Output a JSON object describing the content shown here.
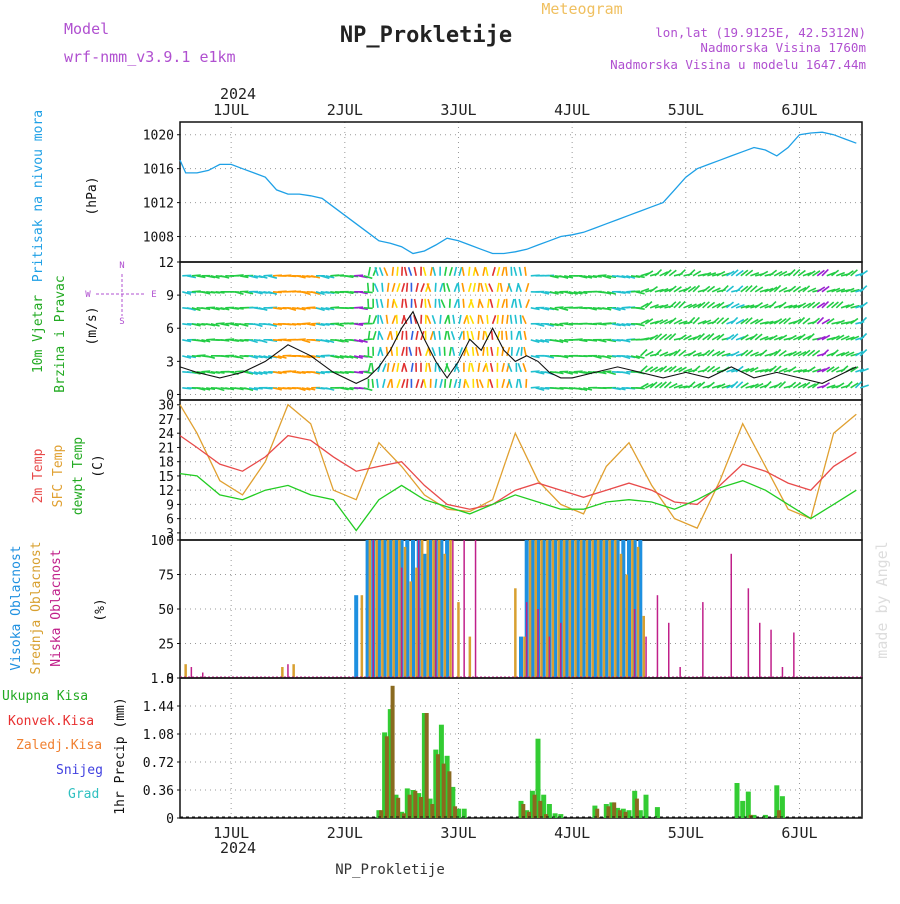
{
  "header": {
    "model_label": "Model",
    "model_name": "wrf-nmm_v3.9.1 e1km",
    "main_title": "NP_Prokletije",
    "meteogram_label": "Meteogram",
    "lonlat": "lon,lat (19.9125E, 42.5312N)",
    "altitude": "Nadmorska Visina 1760m",
    "model_altitude": "Nadmorska Visina u modelu 1647.44m",
    "footer_title": "NP_Prokletije",
    "watermark": "made by Angel"
  },
  "time_axis": {
    "year": "2024",
    "range": [
      0.55,
      6.55
    ],
    "days": [
      1,
      2,
      3,
      4,
      5,
      6
    ],
    "day_labels": [
      "1JUL",
      "2JUL",
      "3JUL",
      "4JUL",
      "5JUL",
      "6JUL"
    ]
  },
  "colors": {
    "pressure": "#1ea0e6",
    "temp2m": "#e84a4a",
    "sfc_temp": "#e0a030",
    "dewpoint": "#22cc22",
    "high_cloud": "#1e90e0",
    "mid_cloud": "#d8a030",
    "low_cloud": "#c0208a",
    "total_precip": "#33cc33",
    "conv_precip": "#e83030",
    "frozen_precip": "#f08030",
    "snow": "#4040e0",
    "hail": "#30c0c0",
    "axis_labels_purple": "#b050d0"
  },
  "chart_data": [
    {
      "type": "line",
      "panel": "pressure",
      "ylabel_line1": "Pritisak na nivou mora",
      "ylabel_units": "(hPa)",
      "ylim": [
        1005,
        1021.5
      ],
      "yticks": [
        1008,
        1012,
        1016,
        1020
      ],
      "grid": true,
      "series": [
        {
          "x": [
            0.55,
            0.6,
            0.7,
            0.8,
            0.9,
            1.0,
            1.1,
            1.2,
            1.3,
            1.4,
            1.5,
            1.6,
            1.7,
            1.8,
            1.9,
            2.0,
            2.1,
            2.2,
            2.3,
            2.4,
            2.5,
            2.6,
            2.7,
            2.8,
            2.9,
            3.0,
            3.1,
            3.2,
            3.3,
            3.4,
            3.5,
            3.6,
            3.7,
            3.8,
            3.9,
            4.0,
            4.1,
            4.2,
            4.3,
            4.4,
            4.5,
            4.6,
            4.7,
            4.8,
            4.9,
            5.0,
            5.1,
            5.2,
            5.3,
            5.4,
            5.5,
            5.6,
            5.7,
            5.8,
            5.9,
            6.0,
            6.1,
            6.2,
            6.3,
            6.4,
            6.5
          ],
          "y": [
            1017.0,
            1015.5,
            1015.5,
            1015.8,
            1016.5,
            1016.5,
            1016.0,
            1015.5,
            1015.0,
            1013.5,
            1013.0,
            1013.0,
            1012.8,
            1012.5,
            1011.5,
            1010.5,
            1009.5,
            1008.5,
            1007.5,
            1007.2,
            1006.8,
            1006.0,
            1006.3,
            1007.0,
            1007.8,
            1007.5,
            1007.0,
            1006.5,
            1006.0,
            1006.0,
            1006.2,
            1006.5,
            1007.0,
            1007.5,
            1008.0,
            1008.2,
            1008.5,
            1009.0,
            1009.5,
            1010.0,
            1010.5,
            1011.0,
            1011.5,
            1012.0,
            1013.5,
            1015.0,
            1016.0,
            1016.5,
            1017.0,
            1017.5,
            1018.0,
            1018.5,
            1018.2,
            1017.5,
            1018.5,
            1020.0,
            1020.2,
            1020.3,
            1020.0,
            1019.5,
            1019.0
          ]
        }
      ]
    },
    {
      "type": "line",
      "panel": "wind",
      "ylabel_line1": "10m Vjetar",
      "ylabel_line2": "Brzina i Pravac",
      "ylabel_units": "(m/s)",
      "compass_n": "N",
      "compass_e": "E",
      "compass_w": "W",
      "compass_s": "S",
      "ylim": [
        -0.5,
        12
      ],
      "yticks": [
        0,
        3,
        6,
        9,
        12
      ],
      "grid": true,
      "series": [
        {
          "name": "speed",
          "x": [
            0.55,
            0.7,
            0.9,
            1.1,
            1.3,
            1.5,
            1.7,
            1.9,
            2.1,
            2.2,
            2.3,
            2.4,
            2.5,
            2.6,
            2.7,
            2.8,
            2.9,
            3.0,
            3.1,
            3.2,
            3.3,
            3.4,
            3.5,
            3.6,
            3.7,
            3.8,
            3.9,
            4.0,
            4.2,
            4.4,
            4.6,
            4.8,
            5.0,
            5.2,
            5.4,
            5.6,
            5.8,
            6.0,
            6.2,
            6.4,
            6.5
          ],
          "y": [
            2.5,
            2.0,
            1.5,
            2.0,
            3.0,
            4.5,
            3.5,
            2.0,
            1.0,
            1.5,
            2.5,
            4.0,
            6.0,
            7.5,
            5.0,
            3.0,
            1.5,
            3.0,
            5.0,
            4.0,
            6.0,
            4.0,
            3.0,
            3.5,
            3.0,
            2.0,
            1.5,
            1.5,
            2.0,
            2.5,
            2.0,
            1.5,
            2.0,
            1.5,
            2.5,
            1.5,
            2.0,
            1.5,
            1.0,
            2.0,
            2.5
          ]
        }
      ]
    },
    {
      "type": "line",
      "panel": "temperature",
      "ylabel_line1": "2m Temp",
      "ylabel_line2": "SFC Temp",
      "ylabel_line3": "dewpt Temp",
      "ylabel_units": "(C)",
      "ylim": [
        1.5,
        31
      ],
      "yticks": [
        3,
        6,
        9,
        12,
        15,
        18,
        21,
        24,
        27,
        30
      ],
      "grid": true,
      "series": [
        {
          "name": "2m Temp",
          "x": [
            0.55,
            0.7,
            0.9,
            1.1,
            1.3,
            1.5,
            1.7,
            1.9,
            2.1,
            2.3,
            2.5,
            2.7,
            2.9,
            3.1,
            3.3,
            3.5,
            3.7,
            3.9,
            4.1,
            4.3,
            4.5,
            4.7,
            4.9,
            5.1,
            5.3,
            5.5,
            5.7,
            5.9,
            6.1,
            6.3,
            6.5
          ],
          "y": [
            23.5,
            21.0,
            17.5,
            16.0,
            19.0,
            23.5,
            22.5,
            19.0,
            16.0,
            17.0,
            18.0,
            13.0,
            9.0,
            8.0,
            9.0,
            12.0,
            13.5,
            12.0,
            10.5,
            12.0,
            13.5,
            12.0,
            9.5,
            9.0,
            13.0,
            17.5,
            16.0,
            13.5,
            12.0,
            17.0,
            20.0
          ]
        },
        {
          "name": "SFC Temp",
          "x": [
            0.55,
            0.7,
            0.9,
            1.1,
            1.3,
            1.5,
            1.7,
            1.9,
            2.1,
            2.3,
            2.5,
            2.7,
            2.9,
            3.1,
            3.3,
            3.5,
            3.7,
            3.9,
            4.1,
            4.3,
            4.5,
            4.7,
            4.9,
            5.1,
            5.3,
            5.5,
            5.7,
            5.9,
            6.1,
            6.3,
            6.5
          ],
          "y": [
            30.0,
            24.0,
            14.0,
            11.0,
            18.0,
            30.0,
            26.0,
            12.0,
            10.0,
            22.0,
            17.0,
            11.0,
            8.0,
            7.5,
            10.0,
            24.0,
            14.0,
            9.0,
            7.0,
            17.0,
            22.0,
            13.0,
            6.0,
            4.0,
            14.0,
            26.0,
            17.0,
            8.0,
            6.0,
            24.0,
            28.0
          ]
        },
        {
          "name": "dewpt Temp",
          "x": [
            0.55,
            0.7,
            0.9,
            1.1,
            1.3,
            1.5,
            1.7,
            1.9,
            2.1,
            2.3,
            2.5,
            2.7,
            2.9,
            3.1,
            3.3,
            3.5,
            3.7,
            3.9,
            4.1,
            4.3,
            4.5,
            4.7,
            4.9,
            5.1,
            5.3,
            5.5,
            5.7,
            5.9,
            6.1,
            6.3,
            6.5
          ],
          "y": [
            15.5,
            15.0,
            11.0,
            10.0,
            12.0,
            13.0,
            11.0,
            10.0,
            3.5,
            10.0,
            13.0,
            10.0,
            8.5,
            7.0,
            9.0,
            11.0,
            9.5,
            8.0,
            8.0,
            9.5,
            10.0,
            9.5,
            8.0,
            10.0,
            12.5,
            14.0,
            12.0,
            9.0,
            6.0,
            9.0,
            12.0
          ]
        }
      ]
    },
    {
      "type": "bar",
      "panel": "clouds",
      "ylabel_line1": "Visoka Oblacnost",
      "ylabel_line2": "Srednja Oblacnost",
      "ylabel_line3": "Niska Oblacnost",
      "ylabel_units": "(%)",
      "ylim": [
        0,
        100
      ],
      "yticks": [
        0,
        25,
        50,
        75,
        100
      ],
      "grid": true,
      "series": [
        {
          "name": "Visoka Oblacnost",
          "x": [
            2.1,
            2.2,
            2.25,
            2.3,
            2.35,
            2.4,
            2.45,
            2.5,
            2.55,
            2.6,
            2.65,
            2.7,
            2.75,
            2.8,
            2.85,
            2.9,
            3.55,
            3.6,
            3.65,
            3.7,
            3.75,
            3.8,
            3.85,
            3.9,
            3.95,
            4.0,
            4.05,
            4.1,
            4.15,
            4.2,
            4.25,
            4.3,
            4.35,
            4.4,
            4.45,
            4.5,
            4.55,
            4.6
          ],
          "values": [
            60,
            100,
            100,
            100,
            100,
            100,
            100,
            100,
            100,
            100,
            100,
            90,
            100,
            100,
            100,
            100,
            30,
            100,
            100,
            100,
            100,
            100,
            100,
            100,
            100,
            100,
            100,
            100,
            100,
            100,
            100,
            100,
            100,
            100,
            100,
            100,
            100,
            100
          ]
        },
        {
          "name": "Srednja Oblacnost",
          "x": [
            0.6,
            1.45,
            1.55,
            2.15,
            2.22,
            2.28,
            2.33,
            2.38,
            2.43,
            2.48,
            2.53,
            2.58,
            2.63,
            2.68,
            2.73,
            2.78,
            2.83,
            2.88,
            2.93,
            3.0,
            3.1,
            3.5,
            3.58,
            3.63,
            3.68,
            3.73,
            3.78,
            3.83,
            3.88,
            3.93,
            3.98,
            4.03,
            4.08,
            4.13,
            4.18,
            4.23,
            4.28,
            4.33,
            4.38,
            4.43,
            4.48,
            4.53,
            4.58,
            4.63
          ],
          "values": [
            10,
            8,
            10,
            60,
            100,
            100,
            100,
            100,
            100,
            100,
            95,
            70,
            80,
            100,
            100,
            100,
            100,
            90,
            100,
            55,
            30,
            65,
            30,
            100,
            100,
            100,
            100,
            100,
            100,
            100,
            100,
            100,
            100,
            100,
            100,
            100,
            100,
            100,
            100,
            90,
            75,
            100,
            95,
            45
          ]
        },
        {
          "name": "Niska Oblacnost",
          "x": [
            0.65,
            0.75,
            1.5,
            2.25,
            2.5,
            2.65,
            2.8,
            2.95,
            3.05,
            3.15,
            3.6,
            3.7,
            3.8,
            3.9,
            4.55,
            4.65,
            4.75,
            4.85,
            4.95,
            5.15,
            5.4,
            5.55,
            5.65,
            5.75,
            5.85,
            5.95
          ],
          "values": [
            8,
            4,
            10,
            100,
            80,
            100,
            100,
            100,
            100,
            100,
            55,
            50,
            30,
            40,
            50,
            30,
            60,
            40,
            8,
            55,
            90,
            65,
            40,
            35,
            8,
            33
          ]
        }
      ]
    },
    {
      "type": "bar",
      "panel": "precipitation",
      "legend_total": "Ukupna Kisa",
      "legend_conv": "Konvek.Kisa",
      "legend_frozen": "Zaledj.Kisa",
      "legend_snow": "Snijeg",
      "legend_hail": "Grad",
      "ylabel": "1hr Precip (mm)",
      "ylim": [
        0,
        1.8
      ],
      "yticks": [
        0,
        0.36,
        0.72,
        1.08,
        1.44,
        1.8
      ],
      "ytick_labels": [
        "0",
        "0.36",
        "0.72",
        "1.08",
        "1.44",
        "1.8"
      ],
      "grid": true,
      "series": [
        {
          "name": "Ukupna Kisa",
          "x": [
            2.3,
            2.35,
            2.4,
            2.45,
            2.5,
            2.55,
            2.6,
            2.65,
            2.7,
            2.75,
            2.8,
            2.85,
            2.9,
            2.95,
            3.0,
            3.05,
            3.55,
            3.6,
            3.65,
            3.7,
            3.75,
            3.8,
            3.85,
            3.9,
            4.2,
            4.3,
            4.35,
            4.4,
            4.45,
            4.5,
            4.55,
            4.6,
            4.65,
            4.75,
            5.45,
            5.5,
            5.55,
            5.6,
            5.7,
            5.8,
            5.85
          ],
          "values": [
            0.1,
            1.1,
            1.4,
            0.3,
            0.08,
            0.38,
            0.36,
            0.32,
            1.35,
            0.25,
            0.88,
            1.2,
            0.8,
            0.4,
            0.12,
            0.12,
            0.22,
            0.1,
            0.35,
            1.02,
            0.3,
            0.18,
            0.06,
            0.05,
            0.16,
            0.18,
            0.2,
            0.13,
            0.12,
            0.1,
            0.35,
            0.1,
            0.3,
            0.14,
            0.45,
            0.22,
            0.34,
            0.04,
            0.04,
            0.42,
            0.28
          ]
        },
        {
          "name": "Konvek.Kisa",
          "x": [
            2.32,
            2.37,
            2.42,
            2.47,
            2.52,
            2.57,
            2.62,
            2.67,
            2.72,
            2.77,
            2.82,
            2.87,
            2.92,
            2.97,
            3.57,
            3.62,
            3.67,
            3.72,
            3.77,
            4.22,
            4.32,
            4.37,
            4.42,
            4.47,
            4.57,
            5.57,
            5.82
          ],
          "values": [
            0.1,
            1.05,
            1.7,
            0.26,
            0.06,
            0.3,
            0.35,
            0.27,
            1.35,
            0.18,
            0.82,
            0.7,
            0.6,
            0.15,
            0.18,
            0.08,
            0.3,
            0.22,
            0.05,
            0.12,
            0.15,
            0.2,
            0.1,
            0.08,
            0.25,
            0.04,
            0.1
          ]
        }
      ]
    }
  ]
}
